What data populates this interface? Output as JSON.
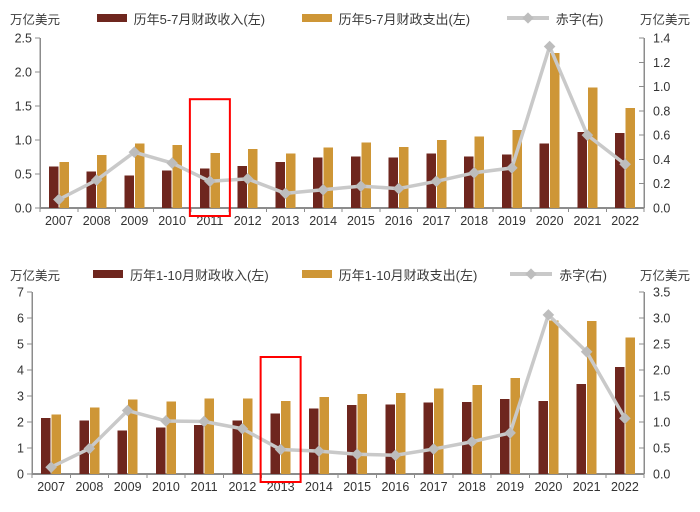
{
  "colors": {
    "revenue_bar": "#6E261E",
    "expenditure_bar": "#CE9636",
    "deficit_line": "#C9C9C9",
    "deficit_marker": "#BDBDBD",
    "axis": "#8C8C8C",
    "tick_text": "#333333",
    "highlight_box": "#FF0000"
  },
  "chart_data": [
    {
      "type": "bar",
      "title": "",
      "categories": [
        "2007",
        "2008",
        "2009",
        "2010",
        "2011",
        "2012",
        "2013",
        "2014",
        "2015",
        "2016",
        "2017",
        "2018",
        "2019",
        "2020",
        "2021",
        "2022"
      ],
      "left_axis": {
        "unit_label": "万亿美元",
        "min": 0,
        "max": 2.5,
        "step": 0.5,
        "decimals": 1
      },
      "right_axis": {
        "unit_label": "万亿美元",
        "min": 0,
        "max": 1.4,
        "step": 0.2,
        "decimals": 1
      },
      "series": [
        {
          "name": "历年5-7月财政收入(左)",
          "kind": "bar",
          "axis": "left",
          "color": "#6E261E",
          "values": [
            0.61,
            0.54,
            0.48,
            0.55,
            0.58,
            0.62,
            0.68,
            0.74,
            0.76,
            0.74,
            0.8,
            0.76,
            0.79,
            0.95,
            1.12,
            1.1
          ]
        },
        {
          "name": "历年5-7月财政支出(左)",
          "kind": "bar",
          "axis": "left",
          "color": "#CE9636",
          "values": [
            0.68,
            0.78,
            0.95,
            0.93,
            0.81,
            0.87,
            0.8,
            0.89,
            0.96,
            0.9,
            1.0,
            1.05,
            1.15,
            2.28,
            1.77,
            1.47
          ]
        },
        {
          "name": "赤字(右)",
          "kind": "line",
          "axis": "right",
          "color": "#C9C9C9",
          "marker": "diamond",
          "marker_color": "#BDBDBD",
          "values": [
            0.07,
            0.23,
            0.46,
            0.37,
            0.22,
            0.24,
            0.12,
            0.15,
            0.18,
            0.16,
            0.22,
            0.29,
            0.33,
            1.33,
            0.6,
            0.36
          ]
        }
      ],
      "highlight": {
        "category": "2011",
        "top_value_left_axis": 1.6,
        "color": "#FF0000"
      },
      "legend_position": "top",
      "grid": false
    },
    {
      "type": "bar",
      "title": "",
      "categories": [
        "2007",
        "2008",
        "2009",
        "2010",
        "2011",
        "2012",
        "2013",
        "2014",
        "2015",
        "2016",
        "2017",
        "2018",
        "2019",
        "2020",
        "2021",
        "2022"
      ],
      "left_axis": {
        "unit_label": "万亿美元",
        "min": 0,
        "max": 7,
        "step": 1,
        "decimals": 0
      },
      "right_axis": {
        "unit_label": "万亿美元",
        "min": 0,
        "max": 3.5,
        "step": 0.5,
        "decimals": 1
      },
      "series": [
        {
          "name": "历年1-10月财政收入(左)",
          "kind": "bar",
          "axis": "left",
          "color": "#6E261E",
          "values": [
            2.15,
            2.05,
            1.67,
            1.78,
            1.88,
            2.05,
            2.33,
            2.52,
            2.66,
            2.68,
            2.75,
            2.77,
            2.88,
            2.8,
            3.47,
            4.11
          ]
        },
        {
          "name": "历年1-10月财政支出(左)",
          "kind": "bar",
          "axis": "left",
          "color": "#CE9636",
          "values": [
            2.28,
            2.56,
            2.87,
            2.78,
            2.9,
            2.9,
            2.8,
            2.97,
            3.08,
            3.12,
            3.28,
            3.43,
            3.7,
            5.9,
            5.88,
            5.25
          ]
        },
        {
          "name": "赤字(右)",
          "kind": "line",
          "axis": "right",
          "color": "#C9C9C9",
          "marker": "diamond",
          "marker_color": "#BDBDBD",
          "values": [
            0.13,
            0.49,
            1.22,
            1.02,
            1.01,
            0.87,
            0.47,
            0.44,
            0.38,
            0.36,
            0.48,
            0.62,
            0.79,
            3.06,
            2.35,
            1.07
          ]
        }
      ],
      "highlight": {
        "category": "2013",
        "top_value_left_axis": 4.5,
        "color": "#FF0000"
      },
      "legend_position": "top",
      "grid": false
    }
  ]
}
